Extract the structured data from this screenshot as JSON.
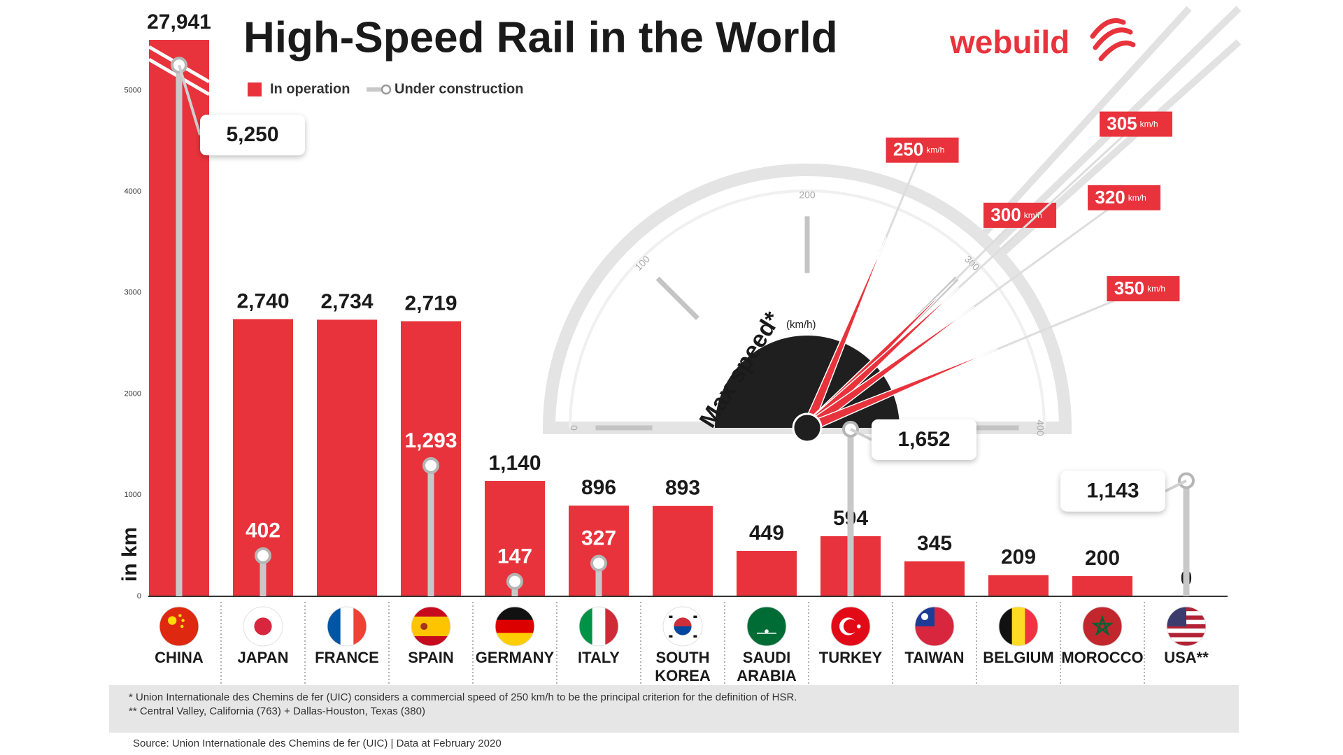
{
  "chart_data": [
    {
      "type": "bar",
      "title": "High-Speed Rail in the World",
      "logo": "webuild",
      "y_label": "in km",
      "categories": [
        "CHINA",
        "JAPAN",
        "FRANCE",
        "SPAIN",
        "GERMANY",
        "ITALY",
        "SOUTH KOREA",
        "SAUDI ARABIA",
        "TURKEY",
        "TAIWAN",
        "BELGIUM",
        "MOROCCO",
        "USA**"
      ],
      "series": [
        {
          "name": "In operation",
          "color": "#e8333c",
          "values": [
            27941,
            2740,
            2734,
            2719,
            1140,
            896,
            893,
            449,
            594,
            345,
            209,
            200,
            0
          ],
          "value_labels": [
            "27,941",
            "2,740",
            "2,734",
            "2,719",
            "1,140",
            "896",
            "893",
            "449",
            "594",
            "345",
            "209",
            "200",
            "0"
          ]
        },
        {
          "name": "Under construction",
          "color": "#c8c8c8",
          "values": [
            5250,
            402,
            null,
            1293,
            147,
            327,
            null,
            null,
            1652,
            null,
            null,
            null,
            1143
          ],
          "value_labels": [
            "5,250",
            "402",
            null,
            "1,293",
            "147",
            "327",
            null,
            null,
            "1,652",
            null,
            null,
            null,
            "1,143"
          ]
        }
      ],
      "ylim": [
        0,
        5500
      ],
      "yticks": [
        0,
        1000,
        2000,
        3000,
        4000,
        5000
      ],
      "notes": [
        "* Union Internationale des Chemins de fer (UIC) considers a commercial speed of 250 km/h to be the principal criterion for the definition of HSR.",
        "** Central Valley, California (763) + Dallas-Houston, Texas (380)"
      ],
      "source": "Source: Union Internationale des Chemins de fer (UIC)  |  Data at February 2020"
    },
    {
      "type": "gauge",
      "title": "Max speed*",
      "unit": "(km/h)",
      "value_unit": "km/h",
      "xlim": [
        0,
        400
      ],
      "xticks": [
        0,
        100,
        200,
        300,
        400
      ],
      "color": "#e8333c",
      "values": [
        250,
        300,
        305,
        320,
        350
      ]
    }
  ]
}
